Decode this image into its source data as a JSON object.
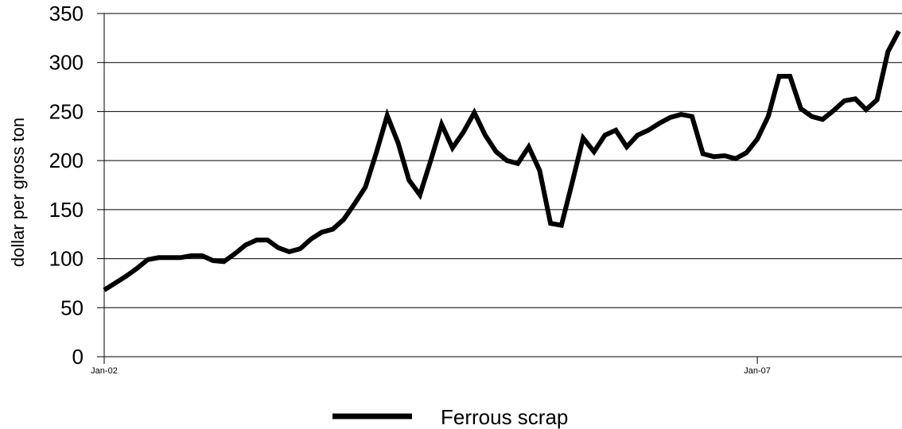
{
  "chart_data": {
    "type": "line",
    "ylabel": "dollar per gross ton",
    "xlabel": "",
    "ylim": [
      0,
      350
    ],
    "y_ticks": [
      0,
      50,
      100,
      150,
      200,
      250,
      300,
      350
    ],
    "x_tick_labels": [
      {
        "label": "Jan-02",
        "x": 0
      },
      {
        "label": "Jan-07",
        "x": 60
      }
    ],
    "grid": "horizontal",
    "legend_position": "bottom",
    "colors": {
      "series": "#000000",
      "grid": "#000000"
    },
    "series": [
      {
        "name": "Ferrous scrap",
        "x": [
          0,
          1,
          2,
          3,
          4,
          5,
          6,
          7,
          8,
          9,
          10,
          11,
          12,
          13,
          14,
          15,
          16,
          17,
          18,
          19,
          20,
          21,
          22,
          23,
          24,
          25,
          26,
          27,
          28,
          29,
          30,
          31,
          32,
          33,
          34,
          35,
          36,
          37,
          38,
          39,
          40,
          41,
          42,
          43,
          44,
          45,
          46,
          47,
          48,
          49,
          50,
          51,
          52,
          53,
          54,
          55,
          56,
          57,
          58,
          59,
          60,
          61,
          62,
          63,
          64,
          65,
          66,
          67,
          68,
          69,
          70,
          71,
          72,
          73
        ],
        "values": [
          68,
          75,
          82,
          90,
          99,
          101,
          101,
          101,
          103,
          103,
          98,
          97,
          105,
          114,
          119,
          119,
          111,
          107,
          110,
          120,
          127,
          130,
          140,
          156,
          173,
          208,
          246,
          218,
          180,
          165,
          200,
          237,
          213,
          229,
          249,
          226,
          209,
          200,
          197,
          214,
          190,
          136,
          134,
          178,
          223,
          209,
          226,
          231,
          214,
          226,
          231,
          238,
          244,
          247,
          245,
          207,
          204,
          205,
          202,
          208,
          222,
          245,
          286,
          286,
          253,
          245,
          242,
          251,
          261,
          263,
          252,
          262,
          311,
          332
        ]
      }
    ]
  }
}
